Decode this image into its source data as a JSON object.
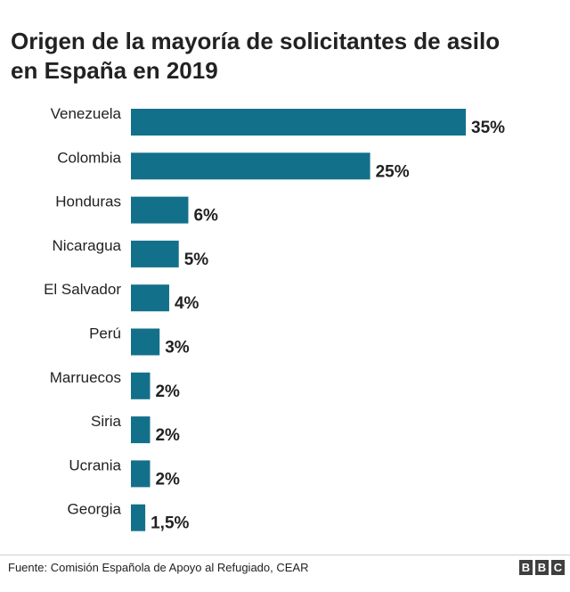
{
  "title_lines": [
    "Origen de la mayoría de solicitantes de asilo",
    "en España en 2019"
  ],
  "source": "Fuente: Comisión Española de Apoyo al Refugiado, CEAR",
  "logo_letters": [
    "B",
    "B",
    "C"
  ],
  "bar_color": "#13708a",
  "chart_data": {
    "type": "bar",
    "orientation": "horizontal",
    "title": "Origen de la mayoría de solicitantes de asilo en España en 2019",
    "categories": [
      "Venezuela",
      "Colombia",
      "Honduras",
      "Nicaragua",
      "El Salvador",
      "Perú",
      "Marruecos",
      "Siria",
      "Ucrania",
      "Georgia"
    ],
    "values": [
      35,
      25,
      6,
      5,
      4,
      3,
      2,
      2,
      2,
      1.5
    ],
    "value_labels": [
      "35%",
      "25%",
      "6%",
      "5%",
      "4%",
      "3%",
      "2%",
      "2%",
      "2%",
      "1,5%"
    ],
    "xlim": [
      0,
      35
    ],
    "grid": false,
    "legend": "none"
  }
}
